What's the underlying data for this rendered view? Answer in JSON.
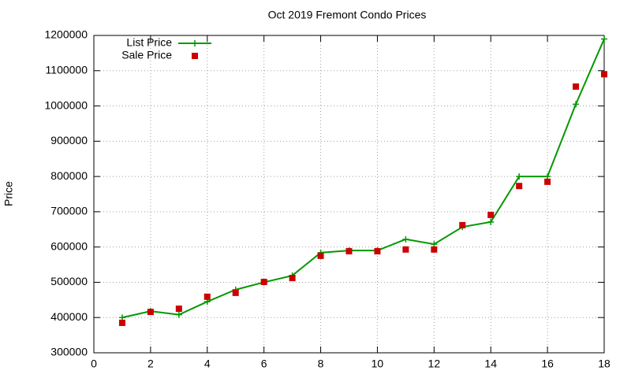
{
  "chart_data": {
    "type": "line",
    "title": "Oct 2019 Fremont Condo Prices",
    "y_label": "Price",
    "x": [
      1,
      2,
      3,
      4,
      5,
      6,
      7,
      8,
      9,
      10,
      11,
      12,
      13,
      14,
      15,
      16,
      17,
      18
    ],
    "series": [
      {
        "name": "List Price",
        "color": "#009900",
        "marker": "plus",
        "line": true,
        "values": [
          400000,
          418000,
          408000,
          445000,
          479000,
          500000,
          519000,
          584000,
          590000,
          590000,
          622000,
          608000,
          657000,
          671000,
          800000,
          800000,
          1005000,
          1190000
        ]
      },
      {
        "name": "Sale Price",
        "color": "#cc0000",
        "marker": "square",
        "line": false,
        "values": [
          385000,
          416000,
          425000,
          459000,
          470000,
          501000,
          512000,
          575000,
          588000,
          588000,
          593000,
          593000,
          662000,
          691000,
          773000,
          785000,
          1055000,
          1090000
        ]
      }
    ],
    "xlim": [
      0,
      18
    ],
    "xticks": [
      0,
      2,
      4,
      6,
      8,
      10,
      12,
      14,
      16,
      18
    ],
    "ylim": [
      300000,
      1200000
    ],
    "yticks": [
      300000,
      400000,
      500000,
      600000,
      700000,
      800000,
      900000,
      1000000,
      1100000,
      1200000
    ],
    "grid": true,
    "legend": "top-left"
  }
}
